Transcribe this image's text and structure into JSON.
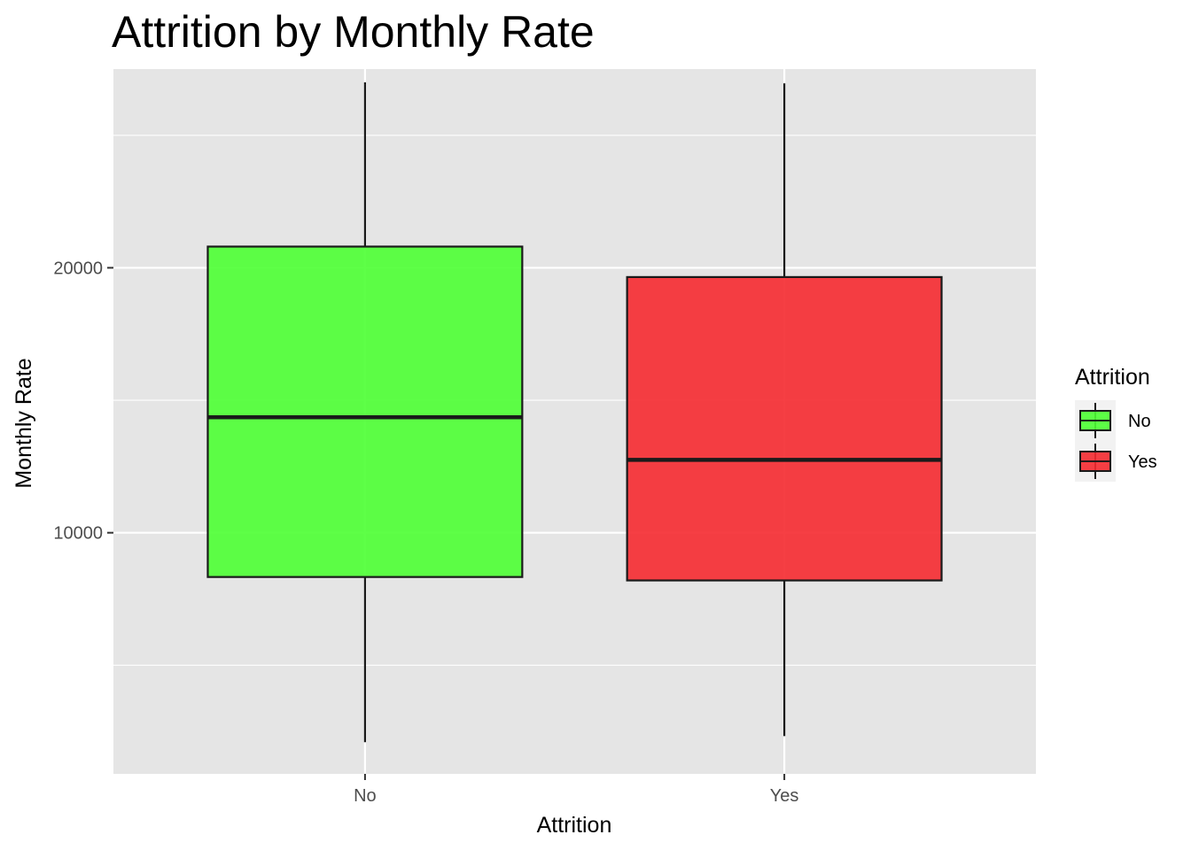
{
  "chart_data": {
    "type": "boxplot",
    "title": "Attrition by Monthly Rate",
    "xlabel": "Attrition",
    "ylabel": "Monthly Rate",
    "categories": [
      "No",
      "Yes"
    ],
    "series": [
      {
        "name": "No",
        "color": "#4dff33",
        "stats": {
          "min": 2094,
          "q1": 8330,
          "median": 14360,
          "q3": 20800,
          "max": 26999
        }
      },
      {
        "name": "Yes",
        "color": "#f52a30",
        "stats": {
          "min": 2326,
          "q1": 8200,
          "median": 12750,
          "q3": 19650,
          "max": 26960
        }
      }
    ],
    "yticks": [
      10000,
      20000
    ],
    "ytick_labels": [
      "10000",
      "20000"
    ],
    "ylim": [
      900,
      27500
    ],
    "grid": true,
    "panel_background": "#e5e5e5",
    "grid_color": "#ffffff",
    "box_outline_color": "#1a1a1a",
    "legend": {
      "title": "Attrition",
      "position": "right",
      "entries": [
        "No",
        "Yes"
      ]
    }
  }
}
